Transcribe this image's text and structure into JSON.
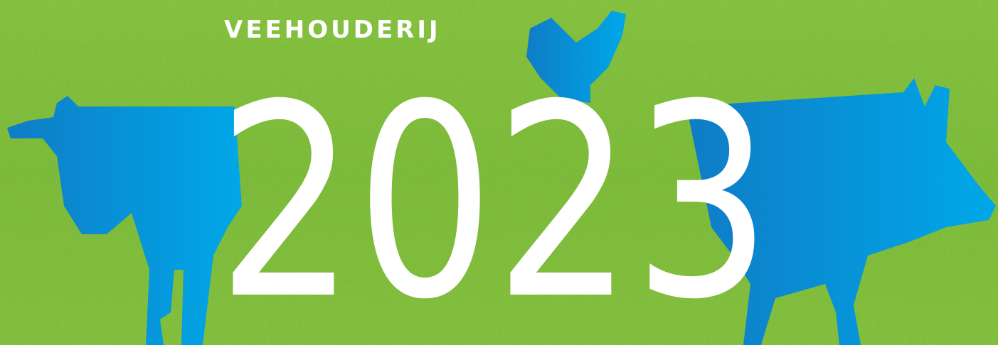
{
  "header": {
    "label": "VEEHOUDERIJ",
    "year": "2023"
  }
}
